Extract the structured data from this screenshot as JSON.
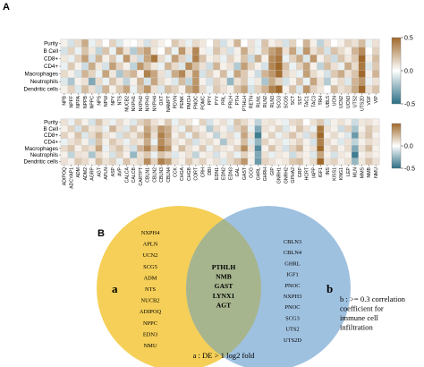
{
  "panel_a": {
    "label": "A"
  },
  "panel_b": {
    "label": "B"
  },
  "chart_data": [
    {
      "type": "heatmap",
      "rows": [
        "Purity",
        "B Cell",
        "CD8+",
        "CD4+",
        "Macrophages",
        "Neutrophils",
        "Dendritic cells"
      ],
      "columns": [
        "NPB",
        "NPFF",
        "NPPA",
        "NPPB",
        "NPPC",
        "NPS",
        "NPW",
        "NPY",
        "NTS",
        "NUCB2",
        "NXPH1",
        "NXPH2",
        "NXPH3",
        "NXPH4",
        "OXT",
        "NAMPT",
        "PDYN",
        "PENK",
        "PMCH",
        "PNOC",
        "POMC",
        "PPY",
        "PYY",
        "PRL",
        "PRLH",
        "PTH",
        "PTHLH",
        "RETN",
        "RLN1",
        "RLN2",
        "RLN3",
        "SCG3",
        "SCG5",
        "SCT",
        "SST",
        "TAC1",
        "TAC3",
        "TRH",
        "UBL5",
        "UCN",
        "UCN2",
        "UCN3",
        "UTS2",
        "UTS2D",
        "VGF",
        "VIP"
      ],
      "values": [
        [
          0.05,
          -0.1,
          0.12,
          0.28,
          -0.05,
          0.1,
          0.0,
          0.15,
          -0.08,
          0.02,
          0.0,
          0.06,
          -0.1,
          0.1,
          0.05,
          0.0,
          0.18,
          0.1,
          -0.05,
          0.12,
          0.08,
          0.0,
          0.15,
          -0.1,
          0.05,
          0.25,
          0.0,
          0.1,
          -0.05,
          0.2,
          0.05,
          0.1,
          -0.1,
          0.15,
          0.0,
          0.25,
          0.05,
          -0.15,
          0.1,
          0.0,
          0.05,
          0.15,
          0.1,
          0.22,
          -0.05,
          0.1
        ],
        [
          -0.1,
          0.15,
          -0.05,
          0.2,
          0.08,
          -0.15,
          0.2,
          -0.05,
          0.3,
          0.1,
          -0.18,
          0.22,
          0.32,
          0.08,
          0.0,
          0.2,
          -0.05,
          0.35,
          0.1,
          0.4,
          0.05,
          -0.05,
          0.2,
          0.1,
          -0.1,
          0.05,
          0.28,
          0.1,
          -0.05,
          0.18,
          0.32,
          0.4,
          0.1,
          0.3,
          -0.08,
          0.35,
          0.1,
          0.18,
          -0.1,
          0.2,
          0.12,
          0.05,
          0.25,
          0.38,
          0.0,
          0.15
        ],
        [
          0.08,
          -0.05,
          0.15,
          0.32,
          -0.1,
          0.25,
          0.05,
          0.18,
          -0.05,
          0.35,
          0.1,
          -0.12,
          0.3,
          0.45,
          0.12,
          -0.05,
          0.32,
          0.15,
          -0.1,
          0.42,
          0.2,
          0.05,
          0.1,
          -0.05,
          0.15,
          0.05,
          0.2,
          -0.12,
          0.28,
          0.05,
          0.38,
          0.45,
          -0.05,
          0.15,
          0.28,
          -0.08,
          0.35,
          0.05,
          0.15,
          -0.12,
          0.2,
          0.08,
          0.18,
          0.5,
          0.05,
          0.22
        ],
        [
          -0.05,
          0.18,
          0.05,
          -0.12,
          0.28,
          0.08,
          -0.1,
          0.32,
          0.15,
          0.05,
          -0.15,
          0.35,
          0.2,
          0.08,
          -0.05,
          0.25,
          0.12,
          -0.08,
          0.38,
          0.22,
          0.1,
          -0.12,
          0.25,
          0.05,
          0.1,
          -0.18,
          0.32,
          0.15,
          0.05,
          -0.1,
          0.4,
          0.55,
          0.2,
          -0.05,
          0.15,
          0.3,
          0.05,
          -0.15,
          0.22,
          0.1,
          -0.05,
          0.28,
          0.12,
          0.45,
          -0.08,
          0.18
        ],
        [
          0.12,
          0.05,
          -0.1,
          0.25,
          0.15,
          -0.05,
          0.3,
          0.08,
          -0.2,
          0.18,
          0.25,
          0.05,
          0.42,
          0.3,
          0.1,
          -0.08,
          0.28,
          0.4,
          0.12,
          0.35,
          -0.1,
          0.15,
          0.05,
          0.22,
          -0.05,
          0.3,
          0.18,
          0.05,
          -0.12,
          0.25,
          0.35,
          0.48,
          0.15,
          0.08,
          -0.05,
          0.32,
          0.12,
          0.05,
          -0.1,
          0.18,
          0.28,
          0.1,
          0.2,
          0.52,
          0.05,
          0.25
        ],
        [
          -0.08,
          -0.2,
          0.05,
          0.1,
          -0.3,
          0.12,
          -0.05,
          0.2,
          0.08,
          -0.15,
          0.05,
          0.25,
          -0.1,
          0.3,
          0.12,
          0.05,
          -0.08,
          0.22,
          -0.15,
          0.35,
          0.05,
          -0.1,
          0.15,
          0.08,
          -0.25,
          0.1,
          0.18,
          -0.05,
          0.08,
          -0.2,
          0.28,
          0.15,
          -0.1,
          0.05,
          0.2,
          -0.05,
          0.3,
          0.1,
          -0.18,
          0.05,
          0.12,
          -0.08,
          0.25,
          0.35,
          -0.05,
          0.1
        ],
        [
          0.05,
          0.15,
          -0.08,
          0.22,
          0.1,
          -0.12,
          0.25,
          0.05,
          0.18,
          0.3,
          -0.05,
          0.2,
          0.35,
          0.1,
          -0.08,
          0.22,
          0.15,
          0.05,
          0.28,
          0.38,
          0.12,
          -0.05,
          0.18,
          0.1,
          0.05,
          0.2,
          0.3,
          -0.1,
          0.15,
          0.25,
          0.42,
          0.5,
          0.05,
          0.2,
          -0.08,
          0.35,
          0.15,
          0.08,
          0.0,
          0.22,
          0.1,
          0.15,
          0.28,
          0.55,
          0.1,
          0.2
        ]
      ],
      "colorbar": {
        "min": -0.5,
        "max": 0.5,
        "ticks": [
          0.5,
          0.0,
          -0.5
        ],
        "low_color": "#2b6e85",
        "mid_color": "#ffffff",
        "high_color": "#a0692a"
      }
    },
    {
      "type": "heatmap",
      "rows": [
        "Purity",
        "B Cell",
        "CD8+",
        "CD4+",
        "Macrophages",
        "Neutrophils",
        "Dendritic cells"
      ],
      "columns": [
        "ADIPOQ",
        "ADCYAP1",
        "ADM",
        "ADM2",
        "AGRP",
        "AGT",
        "APLN",
        "ASP",
        "AVP",
        "CALCA",
        "CALCB",
        "CARTPT",
        "CBLN1",
        "CBLN2",
        "CBLN3",
        "CBLN4",
        "CCK",
        "CHGA",
        "CHGB",
        "CORT",
        "CRH",
        "DBI",
        "EDN1",
        "EDN2",
        "EDN3",
        "GAL",
        "GAST",
        "GCG",
        "GHRL",
        "GHRH",
        "GIP",
        "GNRH1",
        "GNRH2",
        "GPHA2",
        "GRP",
        "HCRT",
        "IAPP",
        "IGF1",
        "INS",
        "KISS1",
        "KNG1",
        "LEP",
        "MLN",
        "MMS",
        "NMB",
        "NMU"
      ],
      "values": [
        [
          0.1,
          -0.05,
          0.15,
          0.05,
          -0.1,
          0.2,
          0.08,
          -0.05,
          0.12,
          0.05,
          -0.08,
          0.15,
          0.22,
          0.1,
          0.05,
          0.18,
          -0.05,
          0.12,
          0.08,
          0.0,
          0.15,
          -0.1,
          0.05,
          0.1,
          -0.05,
          0.2,
          0.12,
          0.05,
          -0.15,
          0.08,
          0.1,
          0.05,
          -0.05,
          0.12,
          0.15,
          0.0,
          0.1,
          0.18,
          -0.08,
          0.05,
          0.1,
          0.05,
          -0.12,
          0.08,
          0.1,
          0.05
        ],
        [
          0.05,
          0.15,
          -0.1,
          0.2,
          0.08,
          0.12,
          -0.05,
          0.25,
          0.1,
          -0.08,
          0.18,
          0.05,
          0.3,
          0.15,
          0.35,
          0.28,
          0.08,
          -0.05,
          0.2,
          0.1,
          0.05,
          -0.18,
          0.12,
          0.05,
          -0.1,
          0.15,
          0.25,
          -0.05,
          -0.3,
          0.1,
          0.05,
          0.15,
          -0.08,
          0.05,
          0.2,
          0.1,
          -0.05,
          0.45,
          0.1,
          0.05,
          -0.12,
          0.15,
          -0.2,
          0.05,
          0.18,
          0.1
        ],
        [
          0.15,
          0.05,
          0.2,
          -0.08,
          0.12,
          0.25,
          0.1,
          0.05,
          -0.1,
          0.15,
          0.08,
          0.2,
          0.35,
          0.1,
          0.42,
          0.3,
          0.05,
          0.15,
          -0.05,
          0.2,
          0.1,
          0.05,
          -0.15,
          0.08,
          0.12,
          -0.05,
          0.3,
          0.1,
          -0.45,
          0.05,
          0.15,
          -0.05,
          0.1,
          0.2,
          0.08,
          -0.1,
          0.15,
          0.5,
          0.05,
          0.12,
          0.05,
          -0.08,
          -0.35,
          0.1,
          0.2,
          0.05
        ],
        [
          -0.05,
          0.1,
          0.15,
          0.05,
          -0.12,
          0.2,
          0.05,
          0.18,
          0.1,
          -0.05,
          0.12,
          0.08,
          0.28,
          -0.05,
          0.38,
          0.25,
          0.1,
          0.05,
          0.15,
          -0.1,
          0.08,
          0.12,
          0.05,
          -0.2,
          0.1,
          0.05,
          0.22,
          -0.08,
          -0.25,
          0.15,
          0.05,
          0.1,
          -0.05,
          0.08,
          0.15,
          0.05,
          -0.1,
          0.42,
          0.12,
          0.05,
          -0.08,
          0.1,
          -0.15,
          0.05,
          0.12,
          0.08
        ],
        [
          0.12,
          0.2,
          0.05,
          0.15,
          0.1,
          0.3,
          -0.05,
          0.12,
          0.2,
          0.08,
          -0.1,
          0.25,
          0.4,
          0.18,
          0.45,
          0.35,
          0.05,
          0.22,
          0.1,
          0.05,
          0.18,
          -0.05,
          0.12,
          0.08,
          0.05,
          0.15,
          0.38,
          0.1,
          -0.4,
          0.05,
          0.2,
          0.08,
          -0.1,
          0.15,
          0.25,
          0.05,
          0.1,
          0.55,
          0.08,
          0.15,
          0.05,
          0.12,
          -0.3,
          0.1,
          0.22,
          0.05
        ],
        [
          0.05,
          -0.15,
          0.1,
          0.08,
          -0.2,
          0.12,
          0.05,
          -0.1,
          0.15,
          0.05,
          -0.25,
          0.1,
          0.18,
          -0.05,
          0.2,
          0.12,
          -0.08,
          0.05,
          0.1,
          -0.15,
          0.05,
          0.08,
          -0.1,
          0.05,
          0.12,
          -0.05,
          0.15,
          0.05,
          -0.3,
          0.1,
          -0.05,
          0.08,
          0.05,
          -0.12,
          0.1,
          0.05,
          -0.08,
          0.3,
          0.05,
          -0.1,
          0.08,
          0.05,
          -0.45,
          0.05,
          0.1,
          0.05
        ],
        [
          0.1,
          0.05,
          0.18,
          0.12,
          0.05,
          0.22,
          0.1,
          0.15,
          -0.05,
          0.2,
          0.08,
          0.12,
          0.38,
          0.15,
          0.42,
          0.32,
          0.1,
          0.05,
          0.18,
          0.08,
          0.15,
          0.05,
          0.1,
          -0.08,
          0.12,
          0.2,
          0.35,
          0.05,
          -0.35,
          0.15,
          0.1,
          0.05,
          0.08,
          0.18,
          0.22,
          0.05,
          0.12,
          0.5,
          0.1,
          0.15,
          0.05,
          0.1,
          -0.25,
          0.08,
          0.2,
          0.1
        ]
      ],
      "colorbar": {
        "min": -0.5,
        "max": 0.5,
        "ticks": [
          0.0,
          -0.5
        ],
        "low_color": "#2b6e85",
        "mid_color": "#ffffff",
        "high_color": "#a0692a"
      }
    }
  ],
  "venn": {
    "set_a": {
      "label": "a",
      "color": "#f5cf57",
      "items": [
        "NXPH4",
        "APLN",
        "UCN2",
        "SCG5",
        "ADM",
        "NTS",
        "NUCB2",
        "ADIPOQ",
        "NPPC",
        "EDN3",
        "NMU"
      ]
    },
    "set_b": {
      "label": "b",
      "color": "#9fc1e0",
      "items": [
        "CBLN3",
        "CBLN4",
        "GHRL",
        "IGF1",
        "PNOC",
        "NXPH3",
        "PNOC",
        "SCG3",
        "UTS2",
        "UTS2D"
      ]
    },
    "intersection": {
      "color": "#a7b58e",
      "items": [
        "PTHLH",
        "NMB",
        "GAST",
        "LYNX1",
        "AGT"
      ]
    },
    "caption_a": "a : DE > 1 log2 fold",
    "caption_b": [
      "b : >= 0.3 correlation",
      "coefficient for",
      "immune cell",
      "infiltration"
    ]
  }
}
